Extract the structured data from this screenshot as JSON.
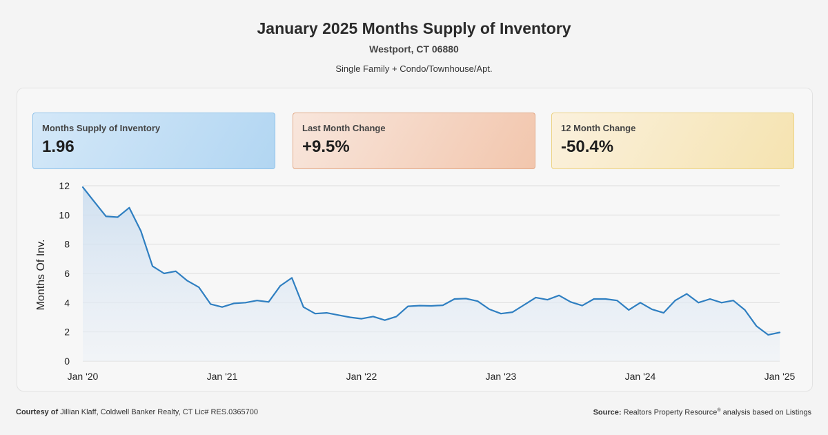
{
  "header": {
    "title": "January 2025 Months Supply of Inventory",
    "location": "Westport, CT 06880",
    "property_types": "Single Family + Condo/Townhouse/Apt."
  },
  "cards": [
    {
      "label": "Months Supply of Inventory",
      "value": "1.96",
      "color": "#b2d6f2"
    },
    {
      "label": "Last Month Change",
      "value": "+9.5%",
      "color": "#f2c6ad"
    },
    {
      "label": "12 Month Change",
      "value": "-50.4%",
      "color": "#f5e3b0"
    }
  ],
  "chart_data": {
    "type": "area",
    "title": "January 2025 Months Supply of Inventory",
    "xlabel": "",
    "ylabel": "Months Of Inv.",
    "ylim": [
      0,
      12
    ],
    "yticks": [
      0,
      2,
      4,
      6,
      8,
      10,
      12
    ],
    "xtick_labels": [
      "Jan '20",
      "Jan '21",
      "Jan '22",
      "Jan '23",
      "Jan '24",
      "Jan '25"
    ],
    "line_color": "#2f7fc1",
    "series": [
      {
        "name": "Months Supply of Inventory",
        "x": [
          "2020-01",
          "2020-02",
          "2020-03",
          "2020-04",
          "2020-05",
          "2020-06",
          "2020-07",
          "2020-08",
          "2020-09",
          "2020-10",
          "2020-11",
          "2020-12",
          "2021-01",
          "2021-02",
          "2021-03",
          "2021-04",
          "2021-05",
          "2021-06",
          "2021-07",
          "2021-08",
          "2021-09",
          "2021-10",
          "2021-11",
          "2021-12",
          "2022-01",
          "2022-02",
          "2022-03",
          "2022-04",
          "2022-05",
          "2022-06",
          "2022-07",
          "2022-08",
          "2022-09",
          "2022-10",
          "2022-11",
          "2022-12",
          "2023-01",
          "2023-02",
          "2023-03",
          "2023-04",
          "2023-05",
          "2023-06",
          "2023-07",
          "2023-08",
          "2023-09",
          "2023-10",
          "2023-11",
          "2023-12",
          "2024-01",
          "2024-02",
          "2024-03",
          "2024-04",
          "2024-05",
          "2024-06",
          "2024-07",
          "2024-08",
          "2024-09",
          "2024-10",
          "2024-11",
          "2024-12",
          "2025-01"
        ],
        "values": [
          11.9,
          10.9,
          9.9,
          9.85,
          10.5,
          8.9,
          6.5,
          6.0,
          6.15,
          5.5,
          5.05,
          3.9,
          3.7,
          3.95,
          4.0,
          4.15,
          4.05,
          5.15,
          5.7,
          3.7,
          3.25,
          3.3,
          3.15,
          3.0,
          2.9,
          3.05,
          2.8,
          3.05,
          3.75,
          3.8,
          3.78,
          3.82,
          4.25,
          4.28,
          4.1,
          3.55,
          3.25,
          3.35,
          3.85,
          4.35,
          4.2,
          4.5,
          4.05,
          3.8,
          4.25,
          4.25,
          4.15,
          3.5,
          4.0,
          3.55,
          3.3,
          4.15,
          4.6,
          4.0,
          4.25,
          4.0,
          4.15,
          3.5,
          2.4,
          1.8,
          1.96
        ]
      }
    ]
  },
  "footer": {
    "courtesy_label": "Courtesy of",
    "courtesy_text": "Jillian Klaff, Coldwell Banker Realty, CT Lic# RES.0365700",
    "source_label": "Source:",
    "source_text_1": "Realtors Property Resource",
    "source_reg": "®",
    "source_text_2": " analysis based on Listings"
  }
}
